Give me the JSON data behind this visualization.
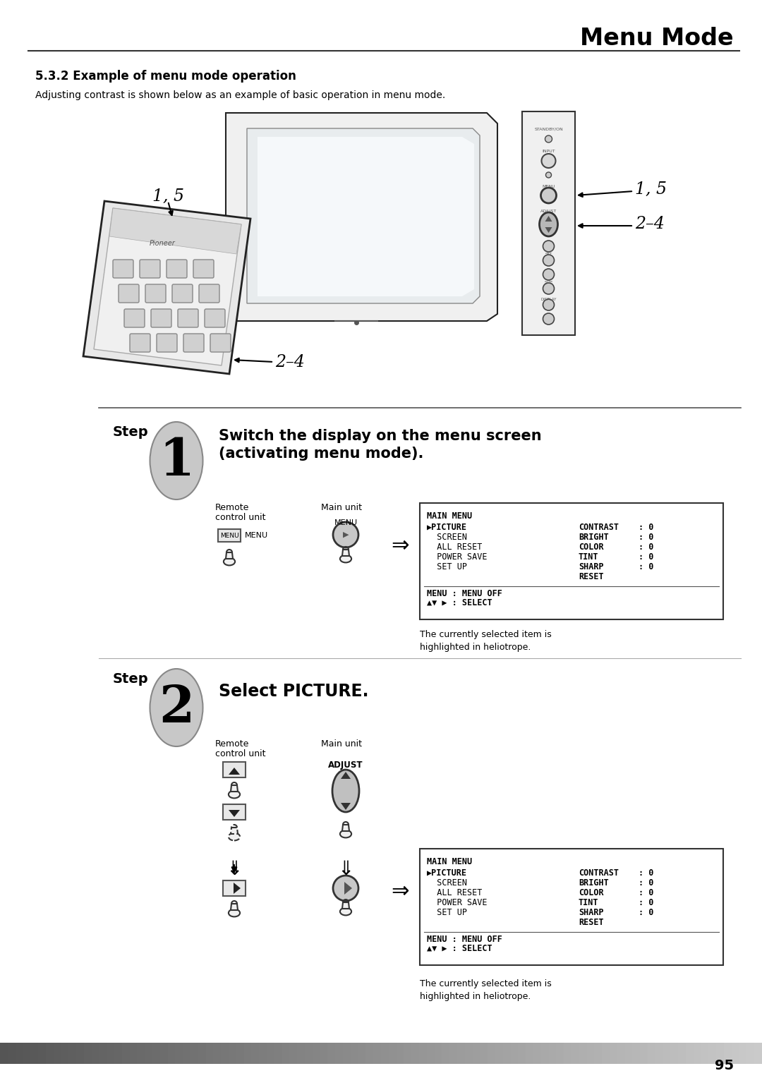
{
  "title": "Menu Mode",
  "section_title": "5.3.2 Example of menu mode operation",
  "section_subtitle": "Adjusting contrast is shown below as an example of basic operation in menu mode.",
  "step1_title_line1": "Switch the display on the menu screen",
  "step1_title_line2": "(activating menu mode).",
  "step2_title": "Select PICTURE.",
  "remote_label": "Remote",
  "remote_label2": "control unit",
  "main_unit_label": "Main unit",
  "menu_label": "MENU",
  "adjust_label": "ADJUST",
  "step1_note1": "The currently selected item is",
  "step1_note2": "highlighted in heliotrope.",
  "step2_note1": "The currently selected item is",
  "step2_note2": "highlighted in heliotrope.",
  "menu_box_title": "MAIN MENU",
  "menu_left_col": [
    "▶PICTURE",
    "  SCREEN",
    "  ALL RESET",
    "  POWER SAVE",
    "  SET UP"
  ],
  "menu_right_col": [
    "CONTRAST",
    "BRIGHT",
    "COLOR",
    "TINT",
    "SHARP",
    "RESET"
  ],
  "menu_colon_vals": [
    ": 0",
    ": 0",
    ": 0",
    ": 0",
    ": 0"
  ],
  "menu_footer1": "MENU : MENU OFF",
  "menu_footer2": "▲▼ ▶ : SELECT",
  "page_number": "95",
  "bg_color": "#ffffff",
  "text_color": "#000000",
  "gray_text": "#555555",
  "light_gray": "#cccccc",
  "mid_gray": "#999999",
  "dark_gray": "#333333",
  "step_oval_fill": "#c8c8c8",
  "step_oval_edge": "#888888"
}
